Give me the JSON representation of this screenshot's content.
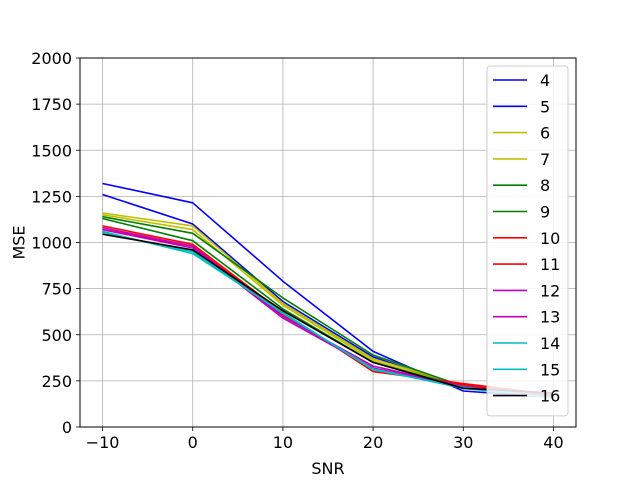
{
  "chart_data": {
    "type": "line",
    "title": "",
    "xlabel": "SNR",
    "ylabel": "MSE",
    "x": [
      -10,
      0,
      10,
      20,
      30,
      40
    ],
    "xlim": [
      -12.5,
      42.5
    ],
    "ylim": [
      0,
      2000
    ],
    "xticks": [
      -10,
      0,
      10,
      20,
      30,
      40
    ],
    "xtick_labels": [
      "−10",
      "0",
      "10",
      "20",
      "30",
      "40"
    ],
    "yticks": [
      0,
      250,
      500,
      750,
      1000,
      1250,
      1500,
      1750,
      2000
    ],
    "ytick_labels": [
      "0",
      "250",
      "500",
      "750",
      "1000",
      "1250",
      "1500",
      "1750",
      "2000"
    ],
    "grid": true,
    "legend_position": "upper-right",
    "series": [
      {
        "name": "4",
        "color": "#0000ff",
        "values": [
          1320,
          1215,
          790,
          410,
          195,
          160
        ]
      },
      {
        "name": "5",
        "color": "#0000ff",
        "values": [
          1260,
          1100,
          680,
          380,
          210,
          170
        ]
      },
      {
        "name": "6",
        "color": "#bfbf00",
        "values": [
          1160,
          1090,
          670,
          370,
          225,
          175
        ]
      },
      {
        "name": "7",
        "color": "#bfbf00",
        "values": [
          1150,
          1070,
          660,
          360,
          215,
          165
        ]
      },
      {
        "name": "8",
        "color": "#008000",
        "values": [
          1140,
          1050,
          700,
          390,
          220,
          170
        ]
      },
      {
        "name": "9",
        "color": "#008000",
        "values": [
          1130,
          1010,
          640,
          350,
          215,
          165
        ]
      },
      {
        "name": "10",
        "color": "#ff0000",
        "values": [
          1090,
          990,
          620,
          300,
          235,
          175
        ]
      },
      {
        "name": "11",
        "color": "#ff0000",
        "values": [
          1070,
          980,
          610,
          310,
          230,
          170
        ]
      },
      {
        "name": "12",
        "color": "#bf00bf",
        "values": [
          1080,
          980,
          600,
          330,
          220,
          165
        ]
      },
      {
        "name": "13",
        "color": "#bf00bf",
        "values": [
          1070,
          970,
          590,
          320,
          215,
          160
        ]
      },
      {
        "name": "14",
        "color": "#00bfbf",
        "values": [
          1060,
          940,
          620,
          310,
          215,
          160
        ]
      },
      {
        "name": "15",
        "color": "#00bfbf",
        "values": [
          1055,
          950,
          615,
          315,
          210,
          158
        ]
      },
      {
        "name": "16",
        "color": "#000000",
        "values": [
          1045,
          960,
          630,
          350,
          210,
          185
        ]
      }
    ]
  }
}
